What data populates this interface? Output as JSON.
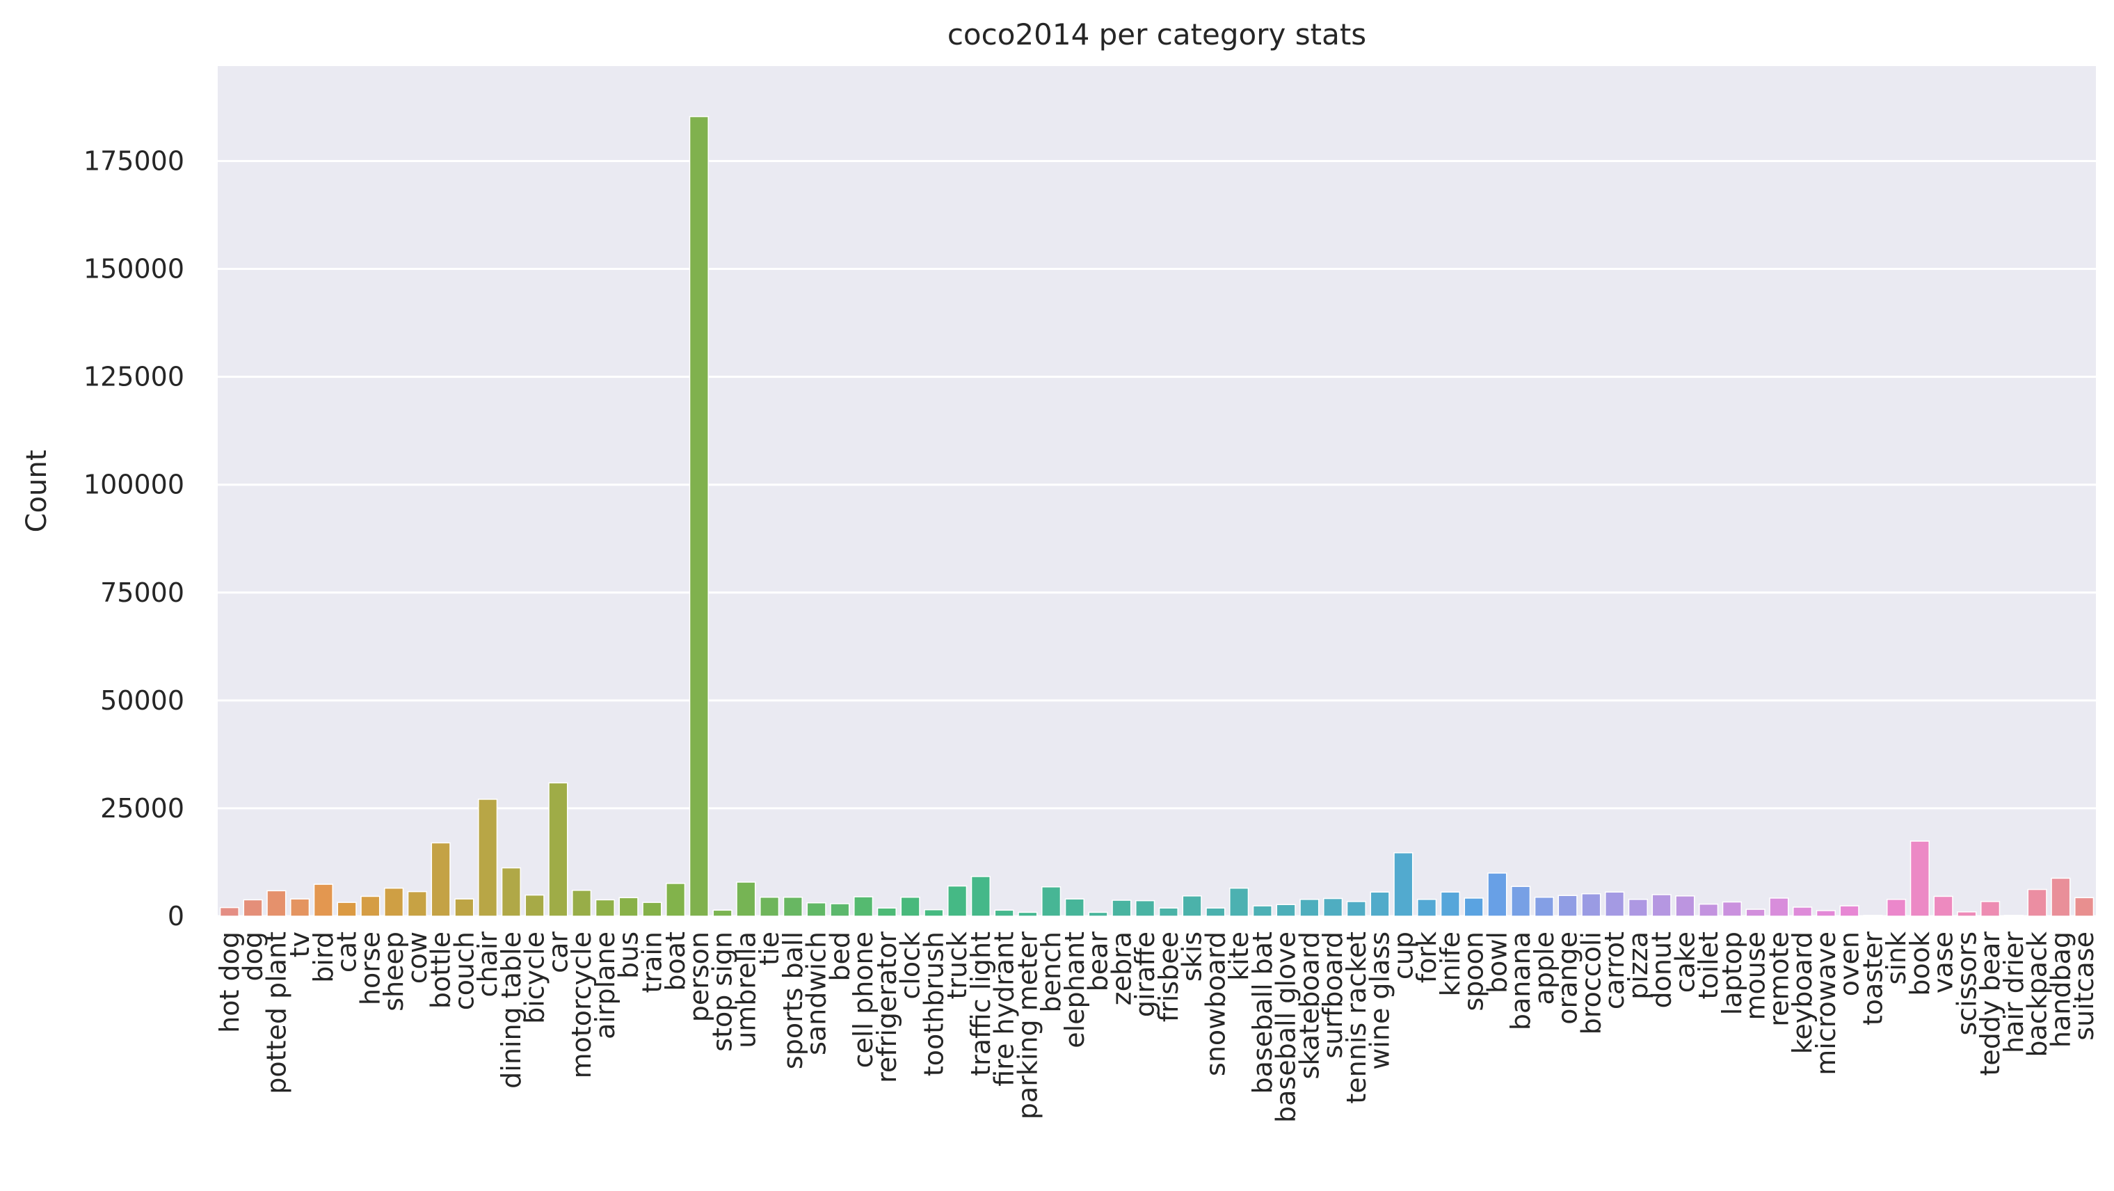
{
  "chart_data": {
    "type": "bar",
    "title": "coco2014 per category stats",
    "xlabel": "",
    "ylabel": "Count",
    "ylim": [
      0,
      197000
    ],
    "yticks": [
      0,
      25000,
      50000,
      75000,
      100000,
      125000,
      150000,
      175000
    ],
    "grid": true,
    "legend": "none",
    "background": "#eaeaf2",
    "gridcolor": "#ffffff",
    "categories": [
      "hot dog",
      "dog",
      "potted plant",
      "tv",
      "bird",
      "cat",
      "horse",
      "sheep",
      "cow",
      "bottle",
      "couch",
      "chair",
      "dining table",
      "bicycle",
      "car",
      "motorcycle",
      "airplane",
      "bus",
      "train",
      "boat",
      "person",
      "stop sign",
      "umbrella",
      "tie",
      "sports ball",
      "sandwich",
      "bed",
      "cell phone",
      "refrigerator",
      "clock",
      "toothbrush",
      "truck",
      "traffic light",
      "fire hydrant",
      "parking meter",
      "bench",
      "elephant",
      "bear",
      "zebra",
      "giraffe",
      "frisbee",
      "skis",
      "snowboard",
      "kite",
      "baseball bat",
      "baseball glove",
      "skateboard",
      "surfboard",
      "tennis racket",
      "wine glass",
      "cup",
      "fork",
      "knife",
      "spoon",
      "bowl",
      "banana",
      "apple",
      "orange",
      "broccoli",
      "carrot",
      "pizza",
      "donut",
      "cake",
      "toilet",
      "laptop",
      "mouse",
      "remote",
      "keyboard",
      "microwave",
      "oven",
      "toaster",
      "sink",
      "book",
      "vase",
      "scissors",
      "teddy bear",
      "hair drier",
      "backpack",
      "handbag",
      "suitcase"
    ],
    "values": [
      2000,
      3800,
      5900,
      4000,
      7400,
      3200,
      4600,
      6500,
      5700,
      17000,
      4000,
      27100,
      11200,
      4900,
      30900,
      6000,
      3800,
      4300,
      3200,
      7600,
      185300,
      1400,
      7900,
      4400,
      4400,
      3100,
      2900,
      4500,
      1900,
      4400,
      1500,
      7000,
      9200,
      1400,
      900,
      6800,
      4000,
      900,
      3700,
      3600,
      1900,
      4700,
      1900,
      6500,
      2400,
      2700,
      3900,
      4100,
      3400,
      5600,
      14700,
      3900,
      5600,
      4200,
      10000,
      6900,
      4400,
      4800,
      5200,
      5600,
      3900,
      5000,
      4700,
      2800,
      3300,
      1600,
      4200,
      2100,
      1300,
      2400,
      200,
      3900,
      17400,
      4600,
      1000,
      3400,
      200,
      6200,
      8800,
      4300
    ],
    "colors": [
      "#e48e84",
      "#e48f79",
      "#e5916c",
      "#e49460",
      "#e39750",
      "#db9a43",
      "#d59d44",
      "#cf9f44",
      "#c7a244",
      "#c4a245",
      "#bda445",
      "#b8a646",
      "#b0a847",
      "#a7aa47",
      "#9fac47",
      "#98ad48",
      "#8fb048",
      "#89b149",
      "#85b149",
      "#82b34b",
      "#80b14e",
      "#7bb451",
      "#76b454",
      "#6fb55b",
      "#68b762",
      "#61b866",
      "#5cb86c",
      "#55ba70",
      "#4dba76",
      "#49b97c",
      "#46ba81",
      "#45b985",
      "#45b889",
      "#46b88d",
      "#46b791",
      "#47b695",
      "#47b599",
      "#48b59c",
      "#49b4a0",
      "#49b3a3",
      "#4ab3a7",
      "#4bb2aa",
      "#4bb1ae",
      "#4cb1b1",
      "#4db0b5",
      "#4dafb9",
      "#4eaebd",
      "#4fadc1",
      "#50acc5",
      "#51abca",
      "#52aacf",
      "#54a8d4",
      "#56a6da",
      "#5aa3e1",
      "#68a0e6",
      "#77a0e5",
      "#849fe5",
      "#909de4",
      "#9a9be3",
      "#a49ae3",
      "#ad98e2",
      "#b597e1",
      "#bc95e0",
      "#c393df",
      "#ca91de",
      "#d28fdc",
      "#d88ddb",
      "#de8bd9",
      "#e389d7",
      "#e787d4",
      "#ea87d1",
      "#eb87cb",
      "#ec89c5",
      "#ed8abf",
      "#ed8bb9",
      "#ed8cb2",
      "#ec8daa",
      "#eb8ea2",
      "#e98f99",
      "#e88f8f"
    ]
  }
}
